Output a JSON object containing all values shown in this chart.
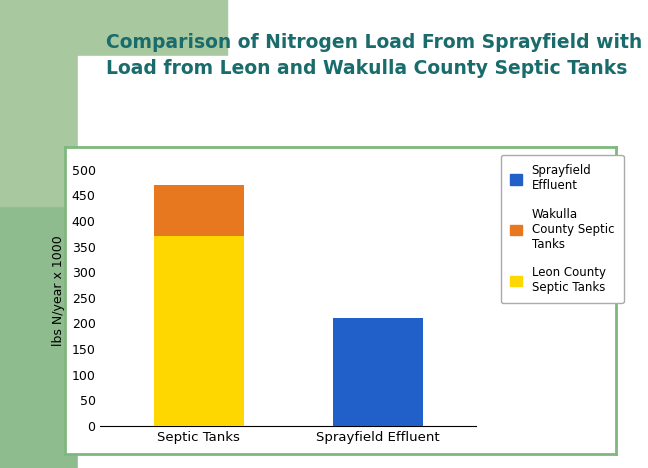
{
  "title_line1": "Comparison of Nitrogen Load From Sprayfield with",
  "title_line2": "Load from Leon and Wakulla County Septic Tanks",
  "title_color": "#1a6b6b",
  "title_fontsize": 13.5,
  "categories": [
    "Septic Tanks",
    "Sprayfield Effluent"
  ],
  "leon_value": 370,
  "wakulla_value": 100,
  "sprayfield_value": 210,
  "leon_color": "#FFD700",
  "wakulla_color": "#E87820",
  "sprayfield_color": "#2060C8",
  "ylabel": "lbs N/year x 1000",
  "ylim": [
    0,
    530
  ],
  "yticks": [
    0,
    50,
    100,
    150,
    200,
    250,
    300,
    350,
    400,
    450,
    500
  ],
  "slide_bg": "#ffffff",
  "green_rect1_color": "#8FBC8F",
  "green_rect2_color": "#A8C8A0",
  "dark_bar_color": "#003050",
  "chart_border_color": "#7FB87F",
  "bar_width": 0.5
}
